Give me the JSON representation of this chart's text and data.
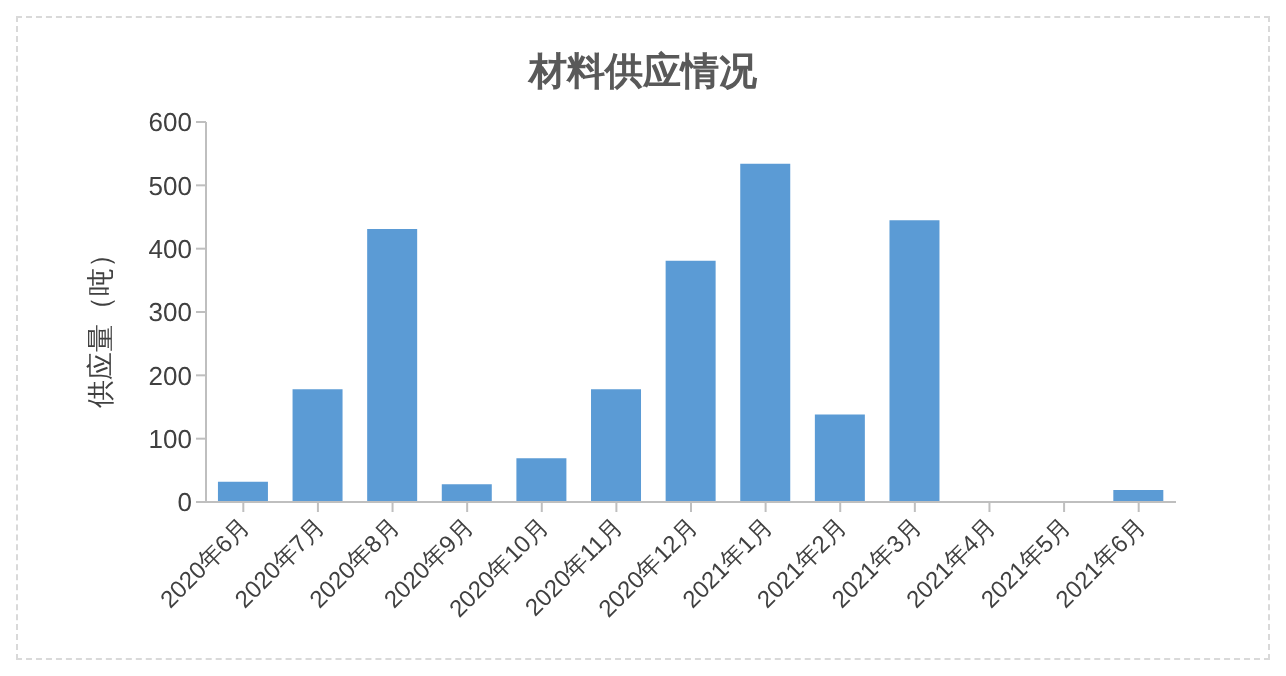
{
  "chart_data": {
    "type": "bar",
    "title": "材料供应情况",
    "ylabel": "供应量（吨）",
    "categories": [
      "2020年6月",
      "2020年7月",
      "2020年8月",
      "2020年9月",
      "2020年10月",
      "2020年11月",
      "2020年12月",
      "2021年1月",
      "2021年2月",
      "2021年3月",
      "2021年4月",
      "2021年5月",
      "2021年6月"
    ],
    "series": [
      {
        "color": "#5b9bd5",
        "values": [
          32,
          178,
          431,
          28,
          69,
          178,
          381,
          534,
          138,
          445,
          0,
          0,
          19
        ]
      }
    ],
    "ylim": [
      0,
      600
    ],
    "yticks": [
      0,
      100,
      200,
      300,
      400,
      500,
      600
    ],
    "grid": false,
    "legend": false
  }
}
